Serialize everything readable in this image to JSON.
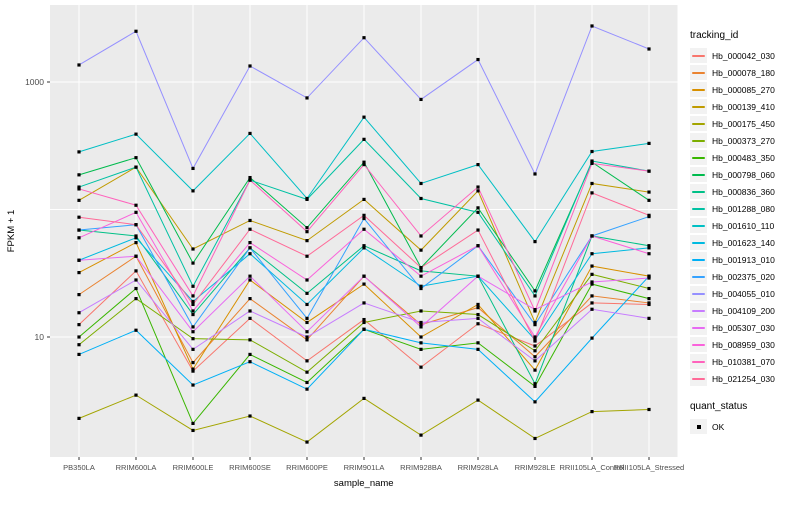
{
  "chart_data": {
    "type": "line",
    "title": "",
    "xlabel": "sample_name",
    "ylabel": "FPKM + 1",
    "y_scale": "log10",
    "y_ticks": [
      {
        "label": "1000",
        "value": 1000
      },
      {
        "label": "10",
        "value": 10
      }
    ],
    "y_gridlines": [
      1000,
      100,
      10
    ],
    "ylim_log": [
      1.15,
      4000
    ],
    "grid": "on",
    "legend_position": "right",
    "panel_bg": "#EBEBEB",
    "gridline_color": "#FFFFFF",
    "axis_text_color": "#4D4D4D",
    "point_color": "#000000",
    "x_categories": [
      "PB350LA",
      "RRIM600LA",
      "RRIM600LE",
      "RRIM600SE",
      "RRIM600PE",
      "RRIM901LA",
      "RRIM928BA",
      "RRIM928LA",
      "RRIM928LE",
      "RRII105LA_Control",
      "RRII105LA_Stressed"
    ],
    "series": [
      {
        "name": "Hb_000042_030",
        "color": "#F8766D",
        "values": [
          12.5,
          33,
          5.4,
          14,
          6.5,
          13.7,
          5.8,
          12.7,
          8.5,
          18.5,
          18
        ]
      },
      {
        "name": "Hb_000078_180",
        "color": "#EA8331",
        "values": [
          21.5,
          43,
          6.3,
          20,
          9.5,
          30,
          12.5,
          17,
          7,
          21,
          18.5
        ]
      },
      {
        "name": "Hb_000085_270",
        "color": "#D89000",
        "values": [
          32,
          55,
          5.6,
          28,
          13,
          26,
          10,
          18,
          5.5,
          36,
          30
        ]
      },
      {
        "name": "Hb_000139_410",
        "color": "#C09B00",
        "values": [
          118,
          215,
          49,
          82,
          57,
          120,
          48,
          140,
          13,
          160,
          137
        ]
      },
      {
        "name": "Hb_000175_450",
        "color": "#A3A500",
        "values": [
          2.3,
          3.5,
          1.85,
          2.4,
          1.5,
          3.3,
          1.7,
          3.2,
          1.6,
          2.6,
          2.7
        ]
      },
      {
        "name": "Hb_000373_270",
        "color": "#7CAE00",
        "values": [
          8.7,
          20,
          9.7,
          9.5,
          5.3,
          13,
          16,
          15,
          7.8,
          31,
          24
        ]
      },
      {
        "name": "Hb_000483_350",
        "color": "#39B600",
        "values": [
          10,
          24,
          2.1,
          7.3,
          4.4,
          11.5,
          8,
          9,
          4.1,
          26,
          20
        ]
      },
      {
        "name": "Hb_000798_060",
        "color": "#00BB4E",
        "values": [
          187,
          255,
          38,
          178,
          72,
          235,
          35,
          103,
          23,
          235,
          118
        ]
      },
      {
        "name": "Hb_000836_360",
        "color": "#00C087",
        "values": [
          69,
          62,
          15,
          50,
          22,
          52,
          33,
          30,
          4.3,
          62,
          52
        ]
      },
      {
        "name": "Hb_001288_080",
        "color": "#00C1A3",
        "values": [
          150,
          215,
          25,
          170,
          120,
          355,
          122,
          95,
          21,
          240,
          200
        ]
      },
      {
        "name": "Hb_001610_110",
        "color": "#00BFC4",
        "values": [
          283,
          390,
          140,
          395,
          122,
          530,
          160,
          225,
          56,
          285,
          330
        ]
      },
      {
        "name": "Hb_001623_140",
        "color": "#00BAE0",
        "values": [
          40,
          60,
          19,
          45,
          18,
          50,
          25,
          30,
          9.5,
          45,
          50
        ]
      },
      {
        "name": "Hb_001913_010",
        "color": "#00B0F6",
        "values": [
          7.3,
          11.3,
          4.2,
          6.4,
          3.9,
          11.5,
          9,
          8,
          3.1,
          9.8,
          30
        ]
      },
      {
        "name": "Hb_002375_020",
        "color": "#35A2FF",
        "values": [
          69,
          76,
          12,
          50,
          14,
          85,
          24,
          52,
          12.5,
          62,
          88
        ]
      },
      {
        "name": "Hb_004055_010",
        "color": "#9590FF",
        "values": [
          1360,
          2500,
          210,
          1335,
          750,
          2225,
          730,
          1500,
          190,
          2750,
          1815
        ]
      },
      {
        "name": "Hb_004109_200",
        "color": "#C77CFF",
        "values": [
          15.5,
          28,
          8,
          16,
          10,
          18.5,
          13,
          14,
          6.5,
          16.5,
          14
        ]
      },
      {
        "name": "Hb_005307_030",
        "color": "#E76BF3",
        "values": [
          40,
          43,
          11,
          30,
          11,
          30,
          12,
          30,
          16.4,
          27,
          29
        ]
      },
      {
        "name": "Hb_008959_030",
        "color": "#FA62DB",
        "values": [
          60,
          95,
          16,
          55,
          28,
          70,
          30,
          52,
          10,
          62,
          45
        ]
      },
      {
        "name": "Hb_010381_070",
        "color": "#FF62BC",
        "values": [
          145,
          108,
          21,
          170,
          67,
          225,
          62,
          150,
          16,
          230,
          200
        ]
      },
      {
        "name": "Hb_021254_030",
        "color": "#FF6A98",
        "values": [
          87,
          76,
          18,
          70,
          43,
          90,
          35,
          69,
          9.3,
          135,
          90
        ]
      }
    ],
    "legend": {
      "color_title": "tracking_id",
      "shape_title": "quant_status",
      "shape_items": [
        {
          "label": "OK"
        }
      ]
    }
  }
}
